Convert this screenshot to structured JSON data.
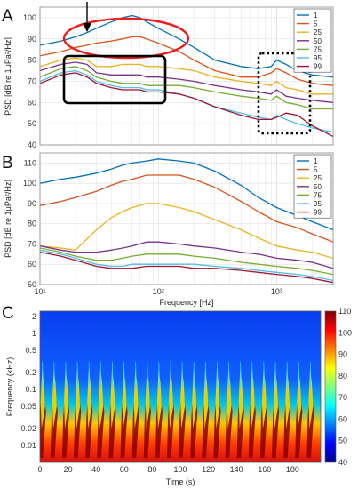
{
  "colors": {
    "series": [
      "#0072bd",
      "#d95319",
      "#edb120",
      "#7e2f8e",
      "#77ac30",
      "#4dbeee",
      "#a2142f"
    ],
    "highlight_ellipse": "#ee1c1c",
    "box": "#000000",
    "grid": "#e2e2e2"
  },
  "panels": {
    "A": {
      "label": "A"
    },
    "B": {
      "label": "B"
    },
    "C": {
      "label": "C"
    }
  },
  "chart_data": [
    {
      "type": "line",
      "panel": "A",
      "ylabel": "PSD [dB re 1μPa²/Hz]",
      "x_scale": "log",
      "xlim": [
        10,
        3000
      ],
      "ylim": [
        40,
        105
      ],
      "y_ticks": [
        40,
        50,
        60,
        70,
        80,
        90,
        100
      ],
      "legend": "top-right",
      "grid": true,
      "series": [
        {
          "name": "1",
          "x": [
            10,
            15,
            20,
            25,
            30,
            40,
            50,
            60,
            70,
            80,
            100,
            150,
            200,
            300,
            500,
            700,
            900,
            1000,
            1200,
            1500,
            2000,
            3000
          ],
          "y": [
            87,
            89,
            91,
            93,
            95,
            98,
            100,
            101,
            100,
            98,
            95,
            90,
            86,
            80,
            77,
            76,
            77,
            80,
            78,
            75,
            73,
            72
          ]
        },
        {
          "name": "5",
          "x": [
            10,
            15,
            20,
            25,
            30,
            40,
            50,
            60,
            70,
            80,
            100,
            150,
            200,
            300,
            500,
            700,
            900,
            1000,
            1200,
            1500,
            2000,
            3000
          ],
          "y": [
            82,
            84,
            86,
            87,
            88,
            89,
            90,
            91,
            91,
            90,
            88,
            84,
            80,
            75,
            72,
            72,
            74,
            76,
            74,
            71,
            69,
            68
          ]
        },
        {
          "name": "25",
          "x": [
            10,
            15,
            20,
            25,
            30,
            40,
            50,
            60,
            70,
            80,
            100,
            150,
            200,
            300,
            500,
            700,
            900,
            1000,
            1200,
            1500,
            2000,
            3000
          ],
          "y": [
            77,
            80,
            81,
            80,
            77,
            77,
            78,
            78,
            78,
            77,
            77,
            76,
            75,
            72,
            70,
            69,
            68,
            70,
            67,
            66,
            64,
            64
          ]
        },
        {
          "name": "50",
          "x": [
            10,
            15,
            20,
            25,
            30,
            40,
            50,
            60,
            70,
            80,
            100,
            150,
            200,
            300,
            500,
            700,
            900,
            1000,
            1200,
            1500,
            2000,
            3000
          ],
          "y": [
            75,
            78,
            79,
            78,
            74,
            73,
            73,
            73,
            73,
            72,
            72,
            71,
            70,
            68,
            66,
            65,
            64,
            66,
            63,
            62,
            61,
            60
          ]
        },
        {
          "name": "75",
          "x": [
            10,
            15,
            20,
            25,
            30,
            40,
            50,
            60,
            70,
            80,
            100,
            150,
            200,
            300,
            500,
            700,
            900,
            1000,
            1200,
            1500,
            2000,
            3000
          ],
          "y": [
            72,
            76,
            77,
            75,
            72,
            70,
            69,
            69,
            69,
            68,
            68,
            68,
            67,
            65,
            63,
            62,
            61,
            63,
            60,
            59,
            57,
            57
          ]
        },
        {
          "name": "95",
          "x": [
            10,
            15,
            20,
            25,
            30,
            40,
            50,
            60,
            70,
            80,
            100,
            150,
            200,
            300,
            500,
            700,
            900,
            1000,
            1200,
            1500,
            2000,
            3000
          ],
          "y": [
            70,
            74,
            75,
            73,
            70,
            68,
            67,
            67,
            67,
            66,
            66,
            64,
            62,
            58,
            55,
            53,
            52,
            54,
            52,
            50,
            48,
            46
          ]
        },
        {
          "name": "99",
          "x": [
            10,
            15,
            20,
            25,
            30,
            40,
            50,
            60,
            70,
            80,
            100,
            150,
            200,
            300,
            500,
            700,
            900,
            1000,
            1200,
            1500,
            2000,
            3000
          ],
          "y": [
            69,
            73,
            74,
            72,
            69,
            67,
            66,
            66,
            66,
            65,
            65,
            64,
            62,
            58,
            54,
            52,
            52,
            53,
            55,
            54,
            49,
            44
          ]
        }
      ]
    },
    {
      "type": "line",
      "panel": "B",
      "xlabel": "Frequency [Hz]",
      "ylabel": "PSD [dB re 1μPa²/Hz]",
      "x_scale": "log",
      "xlim": [
        10,
        3000
      ],
      "x_ticks": [
        10,
        100,
        1000
      ],
      "x_tick_labels": [
        "10¹",
        "10²",
        "10³"
      ],
      "ylim": [
        50,
        115
      ],
      "y_ticks": [
        50,
        60,
        70,
        80,
        90,
        100,
        110
      ],
      "legend": "top-right",
      "grid": true,
      "series": [
        {
          "name": "1",
          "x": [
            10,
            15,
            20,
            30,
            40,
            50,
            60,
            80,
            100,
            150,
            200,
            300,
            500,
            700,
            1000,
            1500,
            2000,
            3000
          ],
          "y": [
            100,
            102,
            103,
            105,
            107,
            109,
            110,
            111,
            112,
            111,
            110,
            106,
            99,
            93,
            88,
            84,
            81,
            77
          ]
        },
        {
          "name": "5",
          "x": [
            10,
            15,
            20,
            30,
            40,
            50,
            60,
            80,
            100,
            150,
            200,
            300,
            500,
            700,
            1000,
            1500,
            2000,
            3000
          ],
          "y": [
            89,
            91,
            93,
            96,
            99,
            101,
            102,
            104,
            104,
            104,
            102,
            98,
            91,
            86,
            81,
            78,
            75,
            71
          ]
        },
        {
          "name": "25",
          "x": [
            10,
            15,
            20,
            30,
            40,
            50,
            60,
            80,
            100,
            150,
            200,
            300,
            500,
            700,
            1000,
            1500,
            2000,
            3000
          ],
          "y": [
            69,
            68,
            67,
            77,
            83,
            86,
            88,
            90,
            90,
            88,
            86,
            82,
            77,
            73,
            69,
            67,
            66,
            63
          ]
        },
        {
          "name": "50",
          "x": [
            10,
            15,
            20,
            30,
            40,
            50,
            60,
            80,
            100,
            150,
            200,
            300,
            500,
            700,
            1000,
            1500,
            2000,
            3000
          ],
          "y": [
            69,
            67,
            66,
            66,
            67,
            68,
            69,
            71,
            71,
            70,
            69,
            68,
            66,
            65,
            63,
            62,
            61,
            58
          ]
        },
        {
          "name": "75",
          "x": [
            10,
            15,
            20,
            30,
            40,
            50,
            60,
            80,
            100,
            150,
            200,
            300,
            500,
            700,
            1000,
            1500,
            2000,
            3000
          ],
          "y": [
            68,
            66,
            64,
            62,
            62,
            63,
            64,
            65,
            65,
            65,
            64,
            63,
            61,
            60,
            59,
            58,
            57,
            55
          ]
        },
        {
          "name": "95",
          "x": [
            10,
            15,
            20,
            30,
            40,
            50,
            60,
            80,
            100,
            150,
            200,
            300,
            500,
            700,
            1000,
            1500,
            2000,
            3000
          ],
          "y": [
            67,
            65,
            63,
            60,
            59,
            59,
            60,
            60,
            60,
            60,
            60,
            59,
            58,
            57,
            56,
            55,
            54,
            52
          ]
        },
        {
          "name": "99",
          "x": [
            10,
            15,
            20,
            30,
            40,
            50,
            60,
            80,
            100,
            150,
            200,
            300,
            500,
            700,
            1000,
            1500,
            2000,
            3000
          ],
          "y": [
            66,
            64,
            62,
            59,
            58,
            58,
            58,
            59,
            59,
            59,
            58,
            58,
            57,
            56,
            55,
            54,
            53,
            51
          ]
        }
      ]
    },
    {
      "type": "heatmap",
      "panel": "C",
      "xlabel": "Time (s)",
      "ylabel": "Frequency (kHz)",
      "x_ticks": [
        0,
        20,
        40,
        60,
        80,
        100,
        120,
        140,
        160,
        180
      ],
      "xlim": [
        0,
        200
      ],
      "y_scale": "log",
      "y_ticks": [
        0.01,
        0.02,
        0.05,
        0.1,
        0.2,
        0.5,
        1,
        2
      ],
      "ylim": [
        0.005,
        2.5
      ],
      "colorbar": {
        "ticks": [
          40,
          50,
          60,
          70,
          80,
          90,
          100,
          110
        ],
        "range": [
          40,
          110
        ],
        "colormap": "jet"
      },
      "pulse_period_s": 8.3,
      "pulse_count": 24
    }
  ]
}
